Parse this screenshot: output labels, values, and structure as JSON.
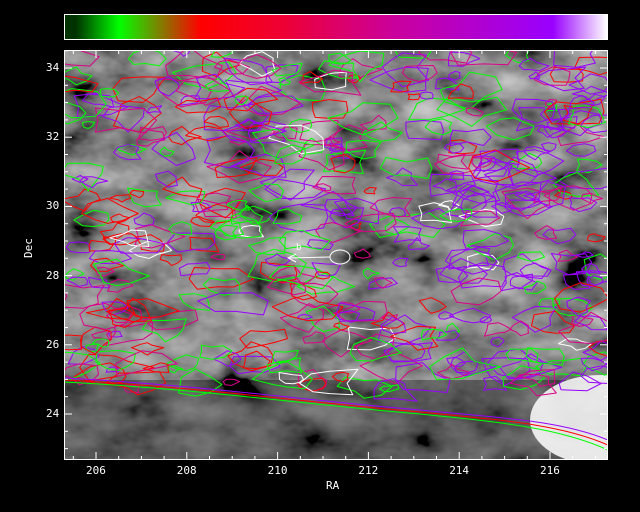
{
  "colorbar": {
    "stops": [
      "#003300",
      "#00ff00",
      "#ff0000",
      "#ee0033",
      "#cc0099",
      "#9900ff",
      "#ffffff"
    ]
  },
  "axes": {
    "xlabel": "RA",
    "ylabel": "Dec",
    "x_ticks": [
      "206",
      "208",
      "210",
      "212",
      "214",
      "216"
    ],
    "y_ticks": [
      "24",
      "26",
      "28",
      "30",
      "32",
      "34"
    ],
    "xlim": [
      205.5,
      217.3
    ],
    "ylim": [
      22.6,
      34.5
    ]
  },
  "contour_colors": [
    "#00ff00",
    "#ff0000",
    "#dd0088",
    "#9900ff",
    "#ffffff"
  ],
  "arrow_color": "#ffffff"
}
